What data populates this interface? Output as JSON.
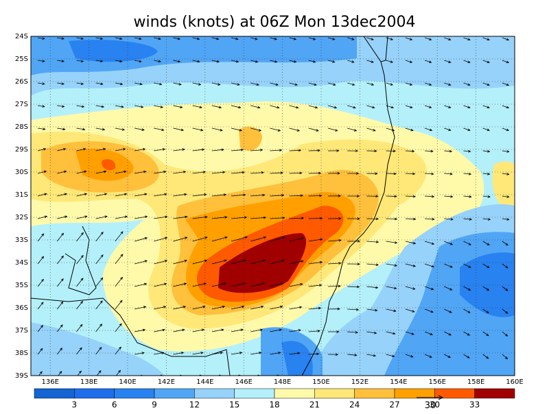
{
  "title": "winds (knots) at 06Z Mon 13dec2004",
  "map": {
    "lat_ticks": [
      {
        "value": 24,
        "label": "24S"
      },
      {
        "value": 25,
        "label": "25S"
      },
      {
        "value": 26,
        "label": "26S"
      },
      {
        "value": 27,
        "label": "27S"
      },
      {
        "value": 28,
        "label": "28S"
      },
      {
        "value": 29,
        "label": "29S"
      },
      {
        "value": 30,
        "label": "30S"
      },
      {
        "value": 31,
        "label": "31S"
      },
      {
        "value": 32,
        "label": "32S"
      },
      {
        "value": 33,
        "label": "33S"
      },
      {
        "value": 34,
        "label": "34S"
      },
      {
        "value": 35,
        "label": "35S"
      },
      {
        "value": 36,
        "label": "36S"
      },
      {
        "value": 37,
        "label": "37S"
      },
      {
        "value": 38,
        "label": "38S"
      },
      {
        "value": 39,
        "label": "39S"
      }
    ],
    "lon_ticks": [
      {
        "value": 136,
        "label": "136E"
      },
      {
        "value": 138,
        "label": "138E"
      },
      {
        "value": 140,
        "label": "140E"
      },
      {
        "value": 142,
        "label": "142E"
      },
      {
        "value": 144,
        "label": "144E"
      },
      {
        "value": 146,
        "label": "146E"
      },
      {
        "value": 148,
        "label": "148E"
      },
      {
        "value": 150,
        "label": "150E"
      },
      {
        "value": 152,
        "label": "152E"
      },
      {
        "value": 154,
        "label": "154E"
      },
      {
        "value": 156,
        "label": "156E"
      },
      {
        "value": 158,
        "label": "158E"
      },
      {
        "value": 160,
        "label": "160E"
      }
    ]
  },
  "colorbar": {
    "colors": [
      "#1464d2",
      "#1e6eeb",
      "#2882f0",
      "#50a5f5",
      "#96d2fa",
      "#b4f0fa",
      "#fffaaa",
      "#ffe878",
      "#ffc03c",
      "#ffa000",
      "#ff5a00",
      "#a00000"
    ],
    "ticks": [
      3,
      6,
      9,
      12,
      15,
      18,
      21,
      24,
      27,
      30,
      33
    ]
  },
  "reference_vector": {
    "label": "30"
  }
}
